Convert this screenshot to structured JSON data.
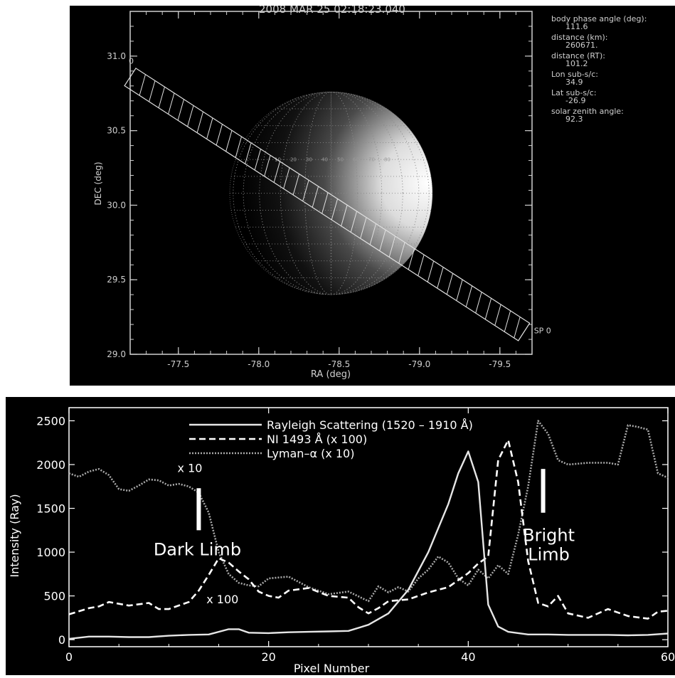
{
  "chart_data": [
    {
      "type": "scatter",
      "title": "2008 MAR 25 02:18:23.040",
      "xlabel": "RA (deg)",
      "ylabel": "DEC (deg)",
      "xlim": [
        -77.2,
        -79.7
      ],
      "ylim": [
        29.0,
        31.3
      ],
      "xticks": [
        "-77.5",
        "-78.0",
        "-78.5",
        "-79.0",
        "-79.5"
      ],
      "yticks": [
        "29.0",
        "29.5",
        "30.0",
        "30.5",
        "31.0"
      ],
      "planet": {
        "center_ra": -78.45,
        "center_dec": 30.08,
        "radius_deg_dec": 0.68
      },
      "slit": {
        "start": [
          -77.2,
          30.86
        ],
        "end": [
          -79.65,
          29.15
        ],
        "start_label": "0",
        "end_label": "SP 0",
        "width_deg": 0.14,
        "hatching": true
      },
      "globe_labels": [
        "10",
        "20",
        "30",
        "40",
        "50",
        "60",
        "70",
        "80"
      ],
      "info": [
        {
          "label": "body phase angle (deg):",
          "value": "111.6"
        },
        {
          "label": "distance (km):",
          "value": "260671."
        },
        {
          "label": "distance (RT):",
          "value": "101.2"
        },
        {
          "label": "Lon sub-s/c:",
          "value": "34.9"
        },
        {
          "label": "Lat sub-s/c:",
          "value": "-26.9"
        },
        {
          "label": "solar zenith angle:",
          "value": "92.3"
        }
      ]
    },
    {
      "type": "line",
      "xlabel": "Pixel Number",
      "ylabel": "Intensity (Ray)",
      "xlim": [
        0,
        60
      ],
      "ylim": [
        -80,
        2650
      ],
      "xticks": [
        "0",
        "20",
        "40",
        "60"
      ],
      "yticks": [
        "0",
        "500",
        "1000",
        "1500",
        "2000",
        "2500"
      ],
      "series": [
        {
          "name": "Rayleigh Scattering (1520 – 1910 Å)",
          "style": "solid",
          "color": "#e6e6e6",
          "x": [
            0,
            2,
            4,
            6,
            8,
            10,
            12,
            14,
            16,
            17,
            18,
            20,
            22,
            24,
            26,
            28,
            30,
            32,
            34,
            36,
            38,
            39,
            40,
            41,
            42,
            43,
            44,
            46,
            48,
            50,
            52,
            54,
            56,
            58,
            60
          ],
          "y": [
            10,
            35,
            35,
            30,
            30,
            45,
            55,
            60,
            120,
            120,
            80,
            75,
            85,
            90,
            95,
            100,
            170,
            300,
            570,
            1000,
            1550,
            1900,
            2150,
            1800,
            400,
            150,
            90,
            60,
            60,
            55,
            55,
            55,
            50,
            55,
            70
          ]
        },
        {
          "name": "NI 1493 Å (x 100)",
          "style": "dashed",
          "color": "#ffffff",
          "x": [
            0,
            2,
            3,
            4,
            6,
            8,
            9,
            10,
            12,
            13,
            14,
            15,
            16,
            17,
            18,
            19,
            20,
            21,
            22,
            24,
            26,
            28,
            29,
            30,
            31,
            32,
            34,
            36,
            38,
            40,
            41,
            42,
            43,
            44,
            45,
            46,
            47,
            48,
            49,
            50,
            52,
            54,
            56,
            58,
            59,
            60
          ],
          "y": [
            290,
            360,
            380,
            430,
            390,
            420,
            350,
            350,
            430,
            560,
            740,
            930,
            880,
            780,
            690,
            550,
            500,
            480,
            560,
            590,
            500,
            480,
            370,
            300,
            360,
            440,
            460,
            540,
            600,
            760,
            870,
            950,
            2050,
            2280,
            1800,
            900,
            420,
            380,
            500,
            300,
            250,
            350,
            270,
            240,
            320,
            330
          ],
          "annotation": "x 100"
        },
        {
          "name": "Lyman–α (x 10)",
          "style": "dotted",
          "color": "#a8a8a8",
          "x": [
            0,
            1,
            2,
            3,
            4,
            5,
            6,
            7,
            8,
            9,
            10,
            11,
            12,
            13,
            14,
            15,
            16,
            17,
            18,
            19,
            20,
            22,
            24,
            26,
            28,
            30,
            31,
            32,
            33,
            34,
            35,
            36,
            37,
            38,
            39,
            40,
            41,
            42,
            43,
            44,
            45,
            46,
            47,
            48,
            49,
            50,
            52,
            54,
            55,
            56,
            57,
            58,
            59,
            60
          ],
          "y": [
            1900,
            1860,
            1920,
            1950,
            1880,
            1720,
            1700,
            1760,
            1830,
            1820,
            1760,
            1780,
            1750,
            1680,
            1450,
            1000,
            750,
            650,
            620,
            610,
            700,
            720,
            600,
            520,
            550,
            440,
            610,
            540,
            600,
            550,
            700,
            800,
            950,
            880,
            700,
            620,
            800,
            700,
            850,
            750,
            1200,
            1750,
            2500,
            2350,
            2050,
            2000,
            2020,
            2020,
            2000,
            2450,
            2430,
            2400,
            1900,
            1850
          ],
          "annotation": "x 10"
        }
      ],
      "annotations": [
        {
          "text": "Dark Limb",
          "x": 13,
          "marker_y": [
            1250,
            1730
          ]
        },
        {
          "text": "Bright Limb",
          "x": 47.5,
          "text_lines": [
            "Bright",
            "Limb"
          ],
          "marker_y": [
            1450,
            1950
          ]
        }
      ],
      "legend": "top-center"
    }
  ]
}
